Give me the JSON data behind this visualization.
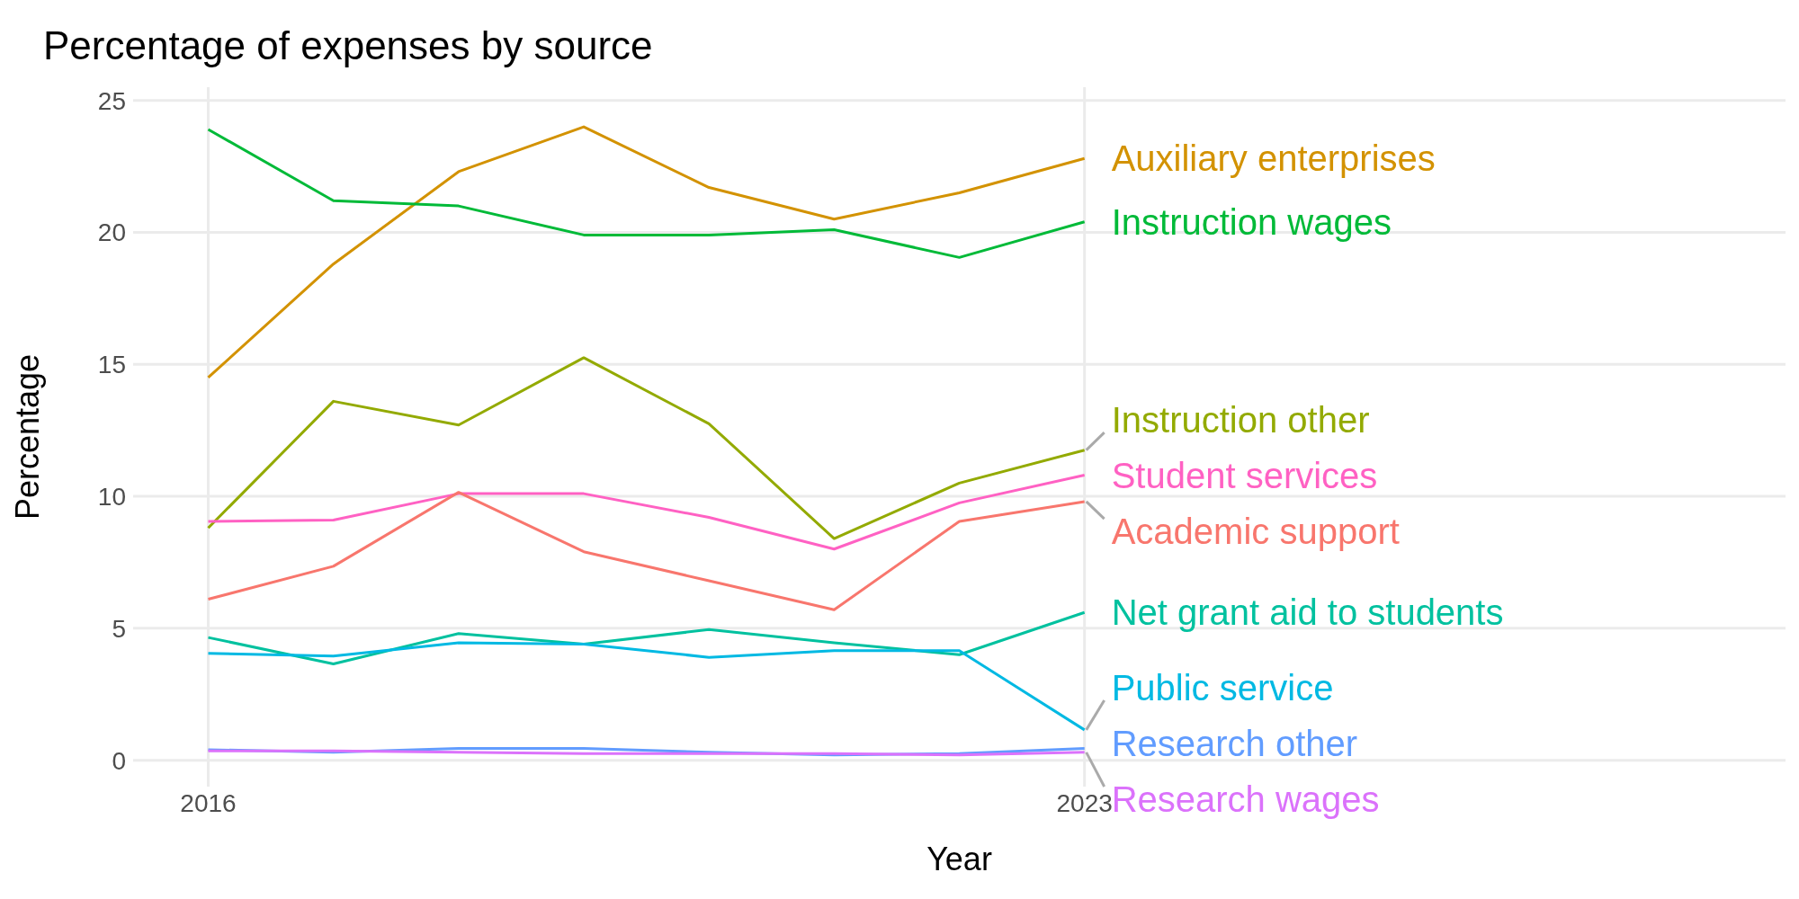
{
  "chart_data": {
    "type": "line",
    "title": "Percentage of expenses by source",
    "xlabel": "Year",
    "ylabel": "Percentage",
    "x": [
      2016,
      2017,
      2018,
      2019,
      2020,
      2021,
      2022,
      2023
    ],
    "xlim": [
      2015.4,
      2028.6
    ],
    "xticks": [
      2016,
      2023
    ],
    "ylim": [
      -1,
      25.5
    ],
    "yticks": [
      0,
      5,
      10,
      15,
      20,
      25
    ],
    "grid": true,
    "legend": false,
    "marker": "none",
    "line_style": "solid",
    "series": [
      {
        "name": "Auxiliary enterprises",
        "color": "#d39200",
        "values": [
          14.5,
          18.8,
          22.3,
          24.0,
          21.7,
          20.5,
          21.5,
          22.8
        ]
      },
      {
        "name": "Instruction wages",
        "color": "#00ba38",
        "values": [
          23.9,
          21.2,
          21.0,
          19.9,
          19.9,
          20.1,
          19.05,
          20.4
        ]
      },
      {
        "name": "Instruction other",
        "color": "#93aa00",
        "values": [
          8.8,
          13.6,
          12.7,
          15.25,
          12.75,
          8.4,
          10.5,
          11.75
        ]
      },
      {
        "name": "Student services",
        "color": "#ff61c3",
        "values": [
          9.05,
          9.1,
          10.1,
          10.1,
          9.2,
          8.0,
          9.75,
          10.8
        ]
      },
      {
        "name": "Academic support",
        "color": "#f8766d",
        "values": [
          6.1,
          7.35,
          10.15,
          7.9,
          6.8,
          5.7,
          9.05,
          9.8
        ]
      },
      {
        "name": "Net grant aid to students",
        "color": "#00c19f",
        "values": [
          4.65,
          3.65,
          4.8,
          4.4,
          4.95,
          4.45,
          4.0,
          5.6
        ]
      },
      {
        "name": "Public service",
        "color": "#00b9e3",
        "values": [
          4.05,
          3.95,
          4.45,
          4.4,
          3.9,
          4.15,
          4.15,
          1.15
        ]
      },
      {
        "name": "Research other",
        "color": "#619cff",
        "values": [
          0.4,
          0.3,
          0.45,
          0.45,
          0.3,
          0.2,
          0.25,
          0.45
        ]
      },
      {
        "name": "Research wages",
        "color": "#db72fb",
        "values": [
          0.35,
          0.35,
          0.3,
          0.25,
          0.25,
          0.25,
          0.2,
          0.3
        ]
      }
    ]
  }
}
